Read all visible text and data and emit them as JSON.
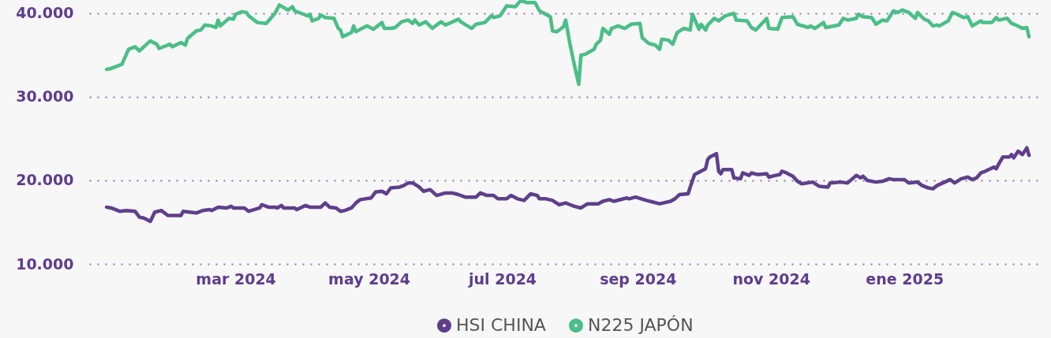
{
  "chart_data": {
    "type": "line",
    "xlim": [
      "2023-12-25",
      "2025-03-04"
    ],
    "xticks": [
      {
        "value": "2024-03-01",
        "label": "mar 2024"
      },
      {
        "value": "2024-05-01",
        "label": "may 2024"
      },
      {
        "value": "2024-07-01",
        "label": "jul 2024"
      },
      {
        "value": "2024-09-01",
        "label": "sep 2024"
      },
      {
        "value": "2024-11-01",
        "label": "nov 2024"
      },
      {
        "value": "2025-01-01",
        "label": "ene 2025"
      }
    ],
    "ylim": [
      10000,
      41600
    ],
    "yticks": [
      {
        "value": 10000,
        "label": "10.000"
      },
      {
        "value": 20000,
        "label": "20.000"
      },
      {
        "value": 30000,
        "label": "30.000"
      },
      {
        "value": 40000,
        "label": "40.000"
      }
    ],
    "grid": "y",
    "legend": "bottom",
    "marker": "none",
    "line_style": "solid",
    "series": [
      {
        "name": "HSI CHINA",
        "color": "#5f3f8b",
        "x": [
          "2024-01-02",
          "2024-01-04",
          "2024-01-08",
          "2024-01-11",
          "2024-01-15",
          "2024-01-17",
          "2024-01-19",
          "2024-01-22",
          "2024-01-24",
          "2024-01-27",
          "2024-01-30",
          "2024-02-05",
          "2024-02-06",
          "2024-02-09",
          "2024-02-12",
          "2024-02-15",
          "2024-02-18",
          "2024-02-19",
          "2024-02-22",
          "2024-02-26",
          "2024-02-28",
          "2024-02-29",
          "2024-03-05",
          "2024-03-07",
          "2024-03-12",
          "2024-03-13",
          "2024-03-16",
          "2024-03-19",
          "2024-03-20",
          "2024-03-22",
          "2024-03-23",
          "2024-03-28",
          "2024-03-29",
          "2024-04-02",
          "2024-04-04",
          "2024-04-09",
          "2024-04-11",
          "2024-04-13",
          "2024-04-16",
          "2024-04-18",
          "2024-04-20",
          "2024-04-23",
          "2024-04-25",
          "2024-04-27",
          "2024-05-02",
          "2024-05-04",
          "2024-05-07",
          "2024-05-09",
          "2024-05-11",
          "2024-05-15",
          "2024-05-17",
          "2024-05-19",
          "2024-05-21",
          "2024-05-24",
          "2024-05-26",
          "2024-05-29",
          "2024-06-01",
          "2024-06-05",
          "2024-06-08",
          "2024-06-11",
          "2024-06-14",
          "2024-06-19",
          "2024-06-21",
          "2024-06-24",
          "2024-06-27",
          "2024-06-29",
          "2024-07-03",
          "2024-07-05",
          "2024-07-08",
          "2024-07-11",
          "2024-07-14",
          "2024-07-17",
          "2024-07-18",
          "2024-07-21",
          "2024-07-24",
          "2024-07-27",
          "2024-07-30",
          "2024-08-01",
          "2024-08-03",
          "2024-08-06",
          "2024-08-09",
          "2024-08-14",
          "2024-08-16",
          "2024-08-19",
          "2024-08-21",
          "2024-08-27",
          "2024-08-28",
          "2024-08-31",
          "2024-09-05",
          "2024-09-08",
          "2024-09-11",
          "2024-09-16",
          "2024-09-18",
          "2024-09-20",
          "2024-09-24",
          "2024-09-25",
          "2024-09-27",
          "2024-10-02",
          "2024-10-03",
          "2024-10-04",
          "2024-10-07",
          "2024-10-08",
          "2024-10-09",
          "2024-10-10",
          "2024-10-14",
          "2024-10-15",
          "2024-10-18",
          "2024-10-19",
          "2024-10-22",
          "2024-10-23",
          "2024-10-26",
          "2024-10-30",
          "2024-10-31",
          "2024-11-03",
          "2024-11-05",
          "2024-11-06",
          "2024-11-08",
          "2024-11-11",
          "2024-11-13",
          "2024-11-15",
          "2024-11-20",
          "2024-11-23",
          "2024-11-27",
          "2024-11-28",
          "2024-12-03",
          "2024-12-06",
          "2024-12-10",
          "2024-12-12",
          "2024-12-13",
          "2024-12-15",
          "2024-12-19",
          "2024-12-22",
          "2024-12-25",
          "2024-12-27",
          "2025-01-01",
          "2025-01-03",
          "2025-01-07",
          "2025-01-09",
          "2025-01-12",
          "2025-01-14",
          "2025-01-16",
          "2025-01-22",
          "2025-01-24",
          "2025-01-27",
          "2025-01-30",
          "2025-02-01",
          "2025-02-03",
          "2025-02-05",
          "2025-02-07",
          "2025-02-11",
          "2025-02-12",
          "2025-02-13",
          "2025-02-15",
          "2025-02-18",
          "2025-02-19",
          "2025-02-20",
          "2025-02-22",
          "2025-02-24",
          "2025-02-26",
          "2025-02-27"
        ],
        "values": [
          16800,
          16700,
          16300,
          16400,
          16300,
          15600,
          15500,
          15100,
          16200,
          16400,
          15800,
          15800,
          16300,
          16200,
          16100,
          16400,
          16500,
          16400,
          16800,
          16700,
          16900,
          16700,
          16700,
          16300,
          16700,
          17100,
          16800,
          16800,
          16700,
          17000,
          16700,
          16700,
          16500,
          17000,
          16800,
          16800,
          17300,
          16800,
          16700,
          16300,
          16400,
          16700,
          17300,
          17700,
          17900,
          18600,
          18700,
          18400,
          19100,
          19200,
          19400,
          19700,
          19700,
          19200,
          18700,
          18900,
          18200,
          18500,
          18500,
          18300,
          18000,
          18000,
          18500,
          18200,
          18200,
          17800,
          17800,
          18200,
          17800,
          17600,
          18400,
          18200,
          17800,
          17800,
          17600,
          17100,
          17300,
          17100,
          16900,
          16700,
          17200,
          17200,
          17500,
          17700,
          17500,
          17900,
          17800,
          18000,
          17600,
          17400,
          17200,
          17500,
          17800,
          18300,
          18400,
          19200,
          20700,
          21400,
          22500,
          22800,
          23200,
          21100,
          20800,
          21300,
          21300,
          20300,
          20200,
          20900,
          20600,
          20900,
          20700,
          20800,
          20400,
          20600,
          20700,
          21100,
          20900,
          20500,
          19900,
          19600,
          19800,
          19300,
          19200,
          19700,
          19800,
          19700,
          20600,
          20300,
          20500,
          20000,
          19800,
          19900,
          20200,
          20100,
          20100,
          19700,
          19800,
          19400,
          19100,
          19000,
          19400,
          20100,
          19700,
          20200,
          20400,
          20100,
          20300,
          20900,
          21100,
          21600,
          21400,
          21900,
          22800,
          22800,
          23100,
          22700,
          23500,
          23100,
          23900,
          23000
        ]
      },
      {
        "name": "N225 JAPÓN",
        "color": "#4bbe87",
        "x": [
          "2024-01-02",
          "2024-01-04",
          "2024-01-09",
          "2024-01-12",
          "2024-01-15",
          "2024-01-17",
          "2024-01-19",
          "2024-01-22",
          "2024-01-25",
          "2024-01-26",
          "2024-01-31",
          "2024-02-01",
          "2024-02-05",
          "2024-02-07",
          "2024-02-08",
          "2024-02-12",
          "2024-02-14",
          "2024-02-16",
          "2024-02-19",
          "2024-02-21",
          "2024-02-22",
          "2024-02-23",
          "2024-02-27",
          "2024-02-29",
          "2024-03-01",
          "2024-03-04",
          "2024-03-06",
          "2024-03-07",
          "2024-03-11",
          "2024-03-15",
          "2024-03-19",
          "2024-03-21",
          "2024-03-25",
          "2024-03-27",
          "2024-03-28",
          "2024-04-01",
          "2024-04-03",
          "2024-04-04",
          "2024-04-05",
          "2024-04-08",
          "2024-04-09",
          "2024-04-11",
          "2024-04-15",
          "2024-04-17",
          "2024-04-18",
          "2024-04-19",
          "2024-04-23",
          "2024-04-24",
          "2024-04-25",
          "2024-04-30",
          "2024-05-03",
          "2024-05-07",
          "2024-05-08",
          "2024-05-11",
          "2024-05-13",
          "2024-05-16",
          "2024-05-19",
          "2024-05-21",
          "2024-05-22",
          "2024-05-24",
          "2024-05-27",
          "2024-05-30",
          "2024-06-03",
          "2024-06-05",
          "2024-06-11",
          "2024-06-12",
          "2024-06-17",
          "2024-06-19",
          "2024-06-23",
          "2024-06-26",
          "2024-06-27",
          "2024-06-30",
          "2024-07-03",
          "2024-07-07",
          "2024-07-09",
          "2024-07-10",
          "2024-07-12",
          "2024-07-14",
          "2024-07-16",
          "2024-07-18",
          "2024-07-23",
          "2024-07-24",
          "2024-07-26",
          "2024-07-29",
          "2024-07-30",
          "2024-08-01",
          "2024-08-03",
          "2024-08-05",
          "2024-08-06",
          "2024-08-08",
          "2024-08-12",
          "2024-08-13",
          "2024-08-15",
          "2024-08-16",
          "2024-08-19",
          "2024-08-20",
          "2024-08-23",
          "2024-08-26",
          "2024-08-29",
          "2024-09-02",
          "2024-09-03",
          "2024-09-06",
          "2024-09-09",
          "2024-09-11",
          "2024-09-12",
          "2024-09-15",
          "2024-09-17",
          "2024-09-19",
          "2024-09-22",
          "2024-09-25",
          "2024-09-26",
          "2024-09-29",
          "2024-09-30",
          "2024-10-02",
          "2024-10-03",
          "2024-10-06",
          "2024-10-08",
          "2024-10-11",
          "2024-10-15",
          "2024-10-16",
          "2024-10-21",
          "2024-10-23",
          "2024-10-25",
          "2024-10-30",
          "2024-10-31",
          "2024-11-04",
          "2024-11-06",
          "2024-11-11",
          "2024-11-13",
          "2024-11-18",
          "2024-11-19",
          "2024-11-21",
          "2024-11-25",
          "2024-11-26",
          "2024-12-02",
          "2024-12-04",
          "2024-12-06",
          "2024-12-10",
          "2024-12-11",
          "2024-12-13",
          "2024-12-17",
          "2024-12-19",
          "2024-12-22",
          "2024-12-24",
          "2024-12-27",
          "2024-12-29",
          "2024-12-31",
          "2025-01-03",
          "2025-01-06",
          "2025-01-07",
          "2025-01-10",
          "2025-01-12",
          "2025-01-14",
          "2025-01-16",
          "2025-01-17",
          "2025-01-21",
          "2025-01-23",
          "2025-01-25",
          "2025-01-28",
          "2025-01-30",
          "2025-02-01",
          "2025-02-05",
          "2025-02-06",
          "2025-02-10",
          "2025-02-12",
          "2025-02-13",
          "2025-02-17",
          "2025-02-19",
          "2025-02-21",
          "2025-02-24",
          "2025-02-26",
          "2025-02-27"
        ],
        "values": [
          33300,
          33400,
          33900,
          35700,
          36000,
          35500,
          36000,
          36700,
          36300,
          35800,
          36300,
          36000,
          36500,
          36200,
          37000,
          37900,
          38000,
          38600,
          38500,
          38300,
          39200,
          38500,
          39400,
          39300,
          39900,
          40200,
          40100,
          39700,
          38900,
          38800,
          40000,
          41000,
          40400,
          40800,
          40300,
          39900,
          39700,
          39900,
          39100,
          39400,
          39800,
          39500,
          39400,
          38200,
          38000,
          37200,
          37700,
          38500,
          37800,
          38500,
          38100,
          38900,
          38200,
          38200,
          38300,
          39000,
          39200,
          38800,
          39200,
          38600,
          39000,
          38200,
          39000,
          38600,
          39300,
          39000,
          38200,
          38700,
          38900,
          39700,
          39500,
          39700,
          40900,
          40800,
          41400,
          41500,
          41300,
          41300,
          41300,
          40300,
          39600,
          37900,
          37800,
          38400,
          39200,
          36300,
          33800,
          31500,
          35000,
          35100,
          35700,
          36300,
          36800,
          38200,
          37500,
          38200,
          38500,
          38200,
          38700,
          38800,
          37100,
          36400,
          36200,
          35700,
          36900,
          36800,
          36300,
          37700,
          38200,
          38000,
          39900,
          38100,
          38700,
          38000,
          38600,
          39400,
          39100,
          39700,
          40000,
          39200,
          39100,
          38300,
          38000,
          39400,
          38200,
          38100,
          39500,
          39600,
          38700,
          38300,
          38500,
          38200,
          38900,
          38300,
          38600,
          39400,
          39200,
          39400,
          39900,
          39600,
          39500,
          38700,
          39200,
          39100,
          40300,
          40100,
          40400,
          40100,
          39400,
          40100,
          39300,
          39100,
          38500,
          38600,
          38500,
          39100,
          40100,
          39900,
          39500,
          39600,
          38500,
          39100,
          38900,
          38900,
          39500,
          39200,
          39400,
          38800,
          38600,
          38200,
          38300,
          37200
        ]
      }
    ]
  }
}
